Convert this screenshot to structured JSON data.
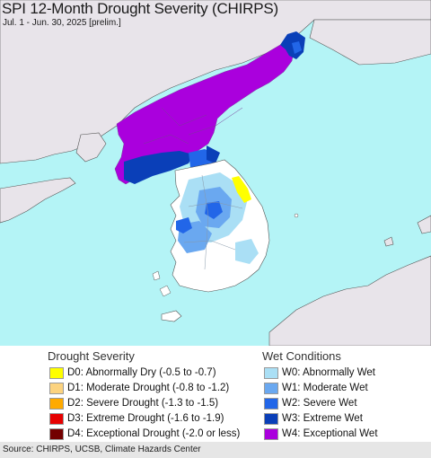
{
  "header": {
    "title": "SPI 12-Month Drought Severity (CHIRPS)",
    "subtitle": "Jul. 1 - Jun. 30, 2025 [prelim.]"
  },
  "legend": {
    "drought": {
      "title": "Drought Severity",
      "items": [
        {
          "label": "D0: Abnormally Dry (-0.5 to -0.7)",
          "color": "#ffff00"
        },
        {
          "label": "D1: Moderate Drought (-0.8 to -1.2)",
          "color": "#fcd37f"
        },
        {
          "label": "D2: Severe Drought (-1.3 to -1.5)",
          "color": "#ffaa00"
        },
        {
          "label": "D3: Extreme Drought (-1.6 to -1.9)",
          "color": "#e60000"
        },
        {
          "label": "D4: Exceptional Drought (-2.0 or less)",
          "color": "#730000"
        }
      ]
    },
    "wet": {
      "title": "Wet Conditions",
      "items": [
        {
          "label": "W0: Abnormally Wet",
          "color": "#aadff5"
        },
        {
          "label": "W1: Moderate Wet",
          "color": "#6aa8f0"
        },
        {
          "label": "W2: Severe Wet",
          "color": "#2266e8"
        },
        {
          "label": "W3: Extreme Wet",
          "color": "#0a3fb8"
        },
        {
          "label": "W4: Exceptional Wet",
          "color": "#aa00dd"
        }
      ]
    }
  },
  "map": {
    "sea_color": "#b4f4f6",
    "land_color": "#e8e4ea",
    "neutral_color": "#ffffff"
  },
  "footer": {
    "source": "Source: CHIRPS, UCSB, Climate Hazards Center"
  }
}
